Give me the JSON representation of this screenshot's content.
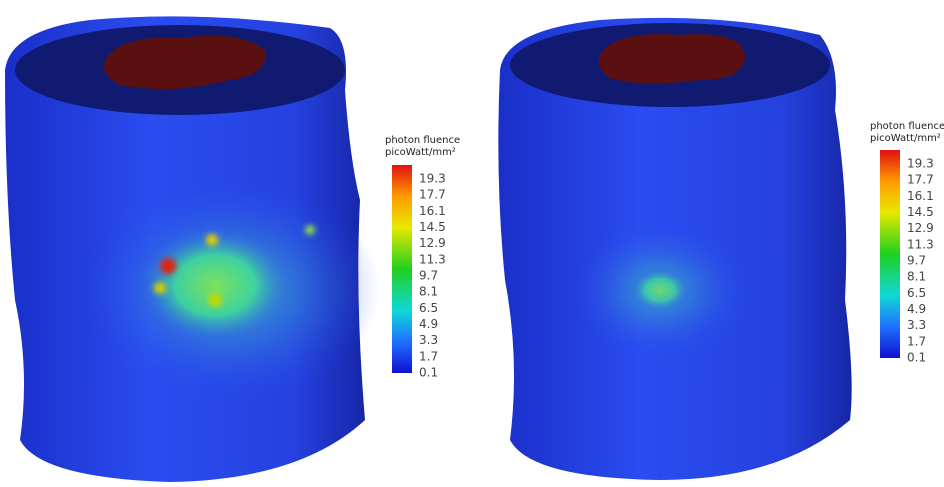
{
  "panels": [
    {
      "colorbar": {
        "title": "photon fluence",
        "unit": "picoWatt/mm²",
        "ticks": [
          19.3,
          17.7,
          16.1,
          14.5,
          12.9,
          11.3,
          9.7,
          8.1,
          6.5,
          4.9,
          3.3,
          1.7,
          0.1
        ]
      }
    },
    {
      "colorbar": {
        "title": "photon fluence",
        "unit": "picoWatt/mm²",
        "ticks": [
          19.3,
          17.7,
          16.1,
          14.5,
          12.9,
          11.3,
          9.7,
          8.1,
          6.5,
          4.9,
          3.3,
          1.7,
          0.1
        ]
      }
    }
  ]
}
